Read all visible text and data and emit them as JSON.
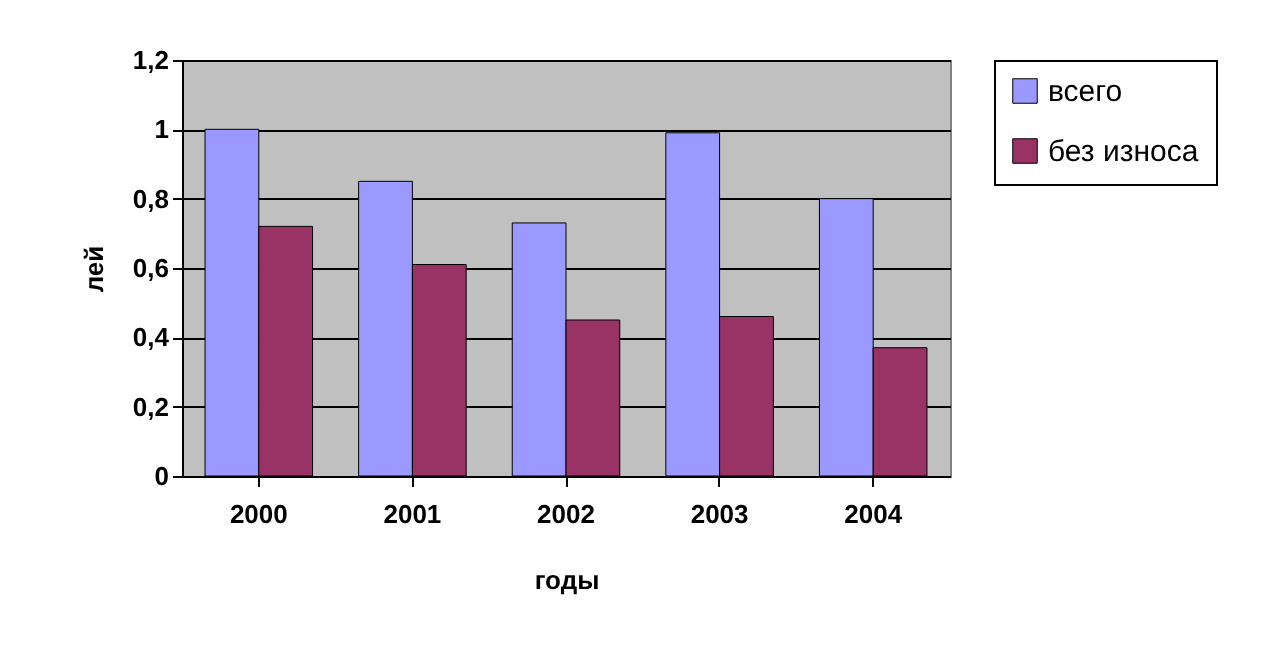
{
  "chart_data": {
    "type": "bar",
    "xlabel": "годы",
    "ylabel": "лей",
    "categories": [
      "2000",
      "2001",
      "2002",
      "2003",
      "2004"
    ],
    "series": [
      {
        "name": "всего",
        "color": "#9999ff",
        "values": [
          1.0,
          0.85,
          0.73,
          0.99,
          0.8
        ]
      },
      {
        "name": "без износа",
        "color": "#993366",
        "values": [
          0.72,
          0.61,
          0.45,
          0.46,
          0.37
        ]
      }
    ],
    "ylim": [
      0,
      1.2
    ],
    "yticks": [
      0,
      {
        "value": 0.2,
        "label": "0,2"
      },
      {
        "value": 0.4,
        "label": "0,4"
      },
      {
        "value": 0.6,
        "label": "0,6"
      },
      {
        "value": 0.8,
        "label": "0,8"
      },
      1,
      {
        "value": 1.2,
        "label": "1,2"
      }
    ],
    "grid": "y",
    "legend": "right"
  }
}
